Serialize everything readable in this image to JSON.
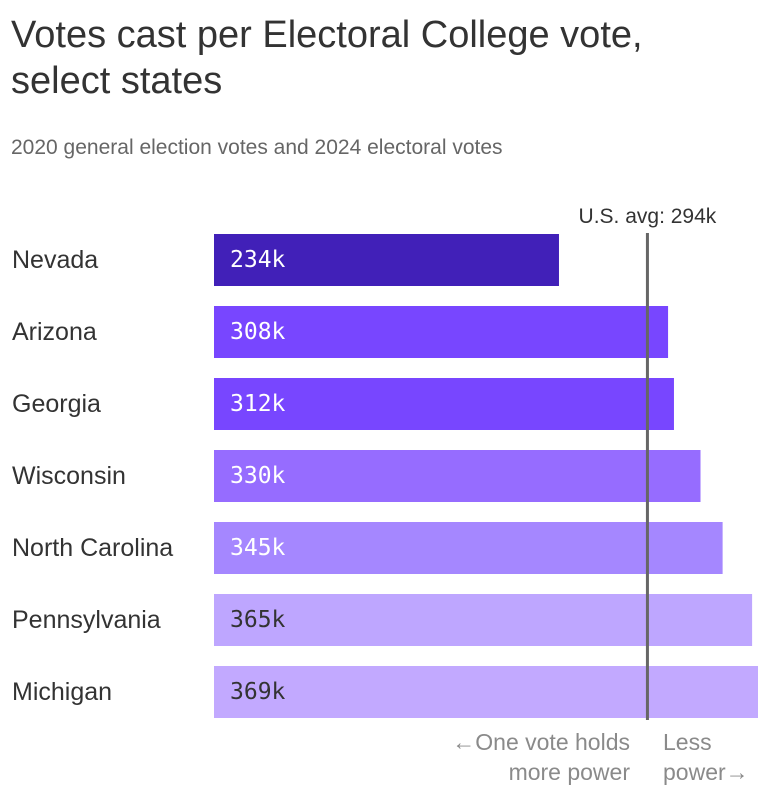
{
  "header": {
    "title": "Votes cast per Electoral College vote, select states",
    "subtitle": "2020 general election votes and 2024 electoral votes"
  },
  "chart_data": {
    "type": "bar",
    "orientation": "horizontal",
    "title": "Votes cast per Electoral College vote, select states",
    "subtitle": "2020 general election votes and 2024 electoral votes",
    "unit": "thousand votes per electoral vote",
    "categories": [
      "Nevada",
      "Arizona",
      "Georgia",
      "Wisconsin",
      "North Carolina",
      "Pennsylvania",
      "Michigan"
    ],
    "values": [
      234,
      308,
      312,
      330,
      345,
      365,
      369
    ],
    "value_labels": [
      "234k",
      "308k",
      "312k",
      "330k",
      "345k",
      "365k",
      "369k"
    ],
    "bar_colors": [
      "#4120b8",
      "#7846ff",
      "#7846ff",
      "#966cff",
      "#a587ff",
      "#bea6ff",
      "#c2a9ff"
    ],
    "label_colors": [
      "#ffffff",
      "#ffffff",
      "#ffffff",
      "#ffffff",
      "#ffffff",
      "#333333",
      "#333333"
    ],
    "xlim": [
      0,
      369
    ],
    "reference_line": {
      "value": 294,
      "label": "U.S. avg: 294k",
      "color": "#666666"
    },
    "axis_notes": {
      "left": [
        "←One vote holds",
        "more power"
      ],
      "right": [
        "Less",
        "power→"
      ]
    },
    "grid": false,
    "legend": "none"
  }
}
